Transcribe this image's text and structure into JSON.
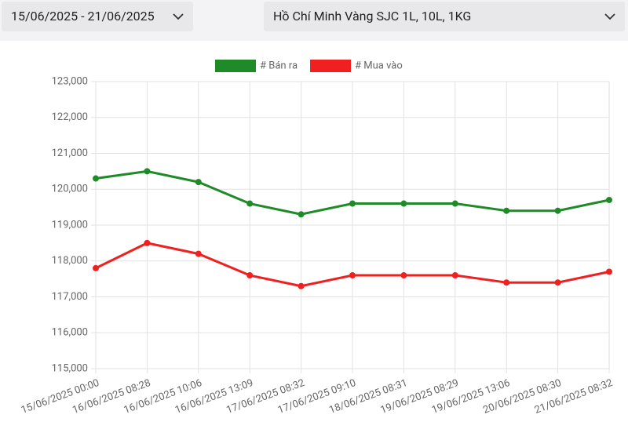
{
  "date_range": "15/06/2025 - 21/06/2025",
  "product": "Hồ Chí Minh Vàng SJC 1L, 10L, 1KG",
  "chart_data": {
    "type": "line",
    "categories": [
      "15/06/2025 00:00",
      "16/06/2025 08:28",
      "16/06/2025 10:06",
      "16/06/2025 13:09",
      "17/06/2025 08:32",
      "17/06/2025 09:10",
      "18/06/2025 08:31",
      "19/06/2025 08:29",
      "19/06/2025 13:06",
      "20/06/2025 08:30",
      "21/06/2025 08:32"
    ],
    "series": [
      {
        "name": "# Bán ra",
        "color": "#1e8a28",
        "values": [
          120300,
          120500,
          120200,
          119600,
          119300,
          119600,
          119600,
          119600,
          119400,
          119400,
          119700
        ]
      },
      {
        "name": "# Mua vào",
        "color": "#f02020",
        "values": [
          117800,
          118500,
          118200,
          117600,
          117300,
          117600,
          117600,
          117600,
          117400,
          117400,
          117700
        ]
      }
    ],
    "ylim": [
      115000,
      123000
    ],
    "yticks": [
      {
        "value": 115000,
        "label": "115,000"
      },
      {
        "value": 116000,
        "label": "116,000"
      },
      {
        "value": 117000,
        "label": "117,000"
      },
      {
        "value": 118000,
        "label": "118,000"
      },
      {
        "value": 119000,
        "label": "119,000"
      },
      {
        "value": 120000,
        "label": "120,000"
      },
      {
        "value": 121000,
        "label": "121,000"
      },
      {
        "value": 122000,
        "label": "122,000"
      },
      {
        "value": 123000,
        "label": "123,000"
      }
    ],
    "grid": true,
    "legend": "top"
  }
}
